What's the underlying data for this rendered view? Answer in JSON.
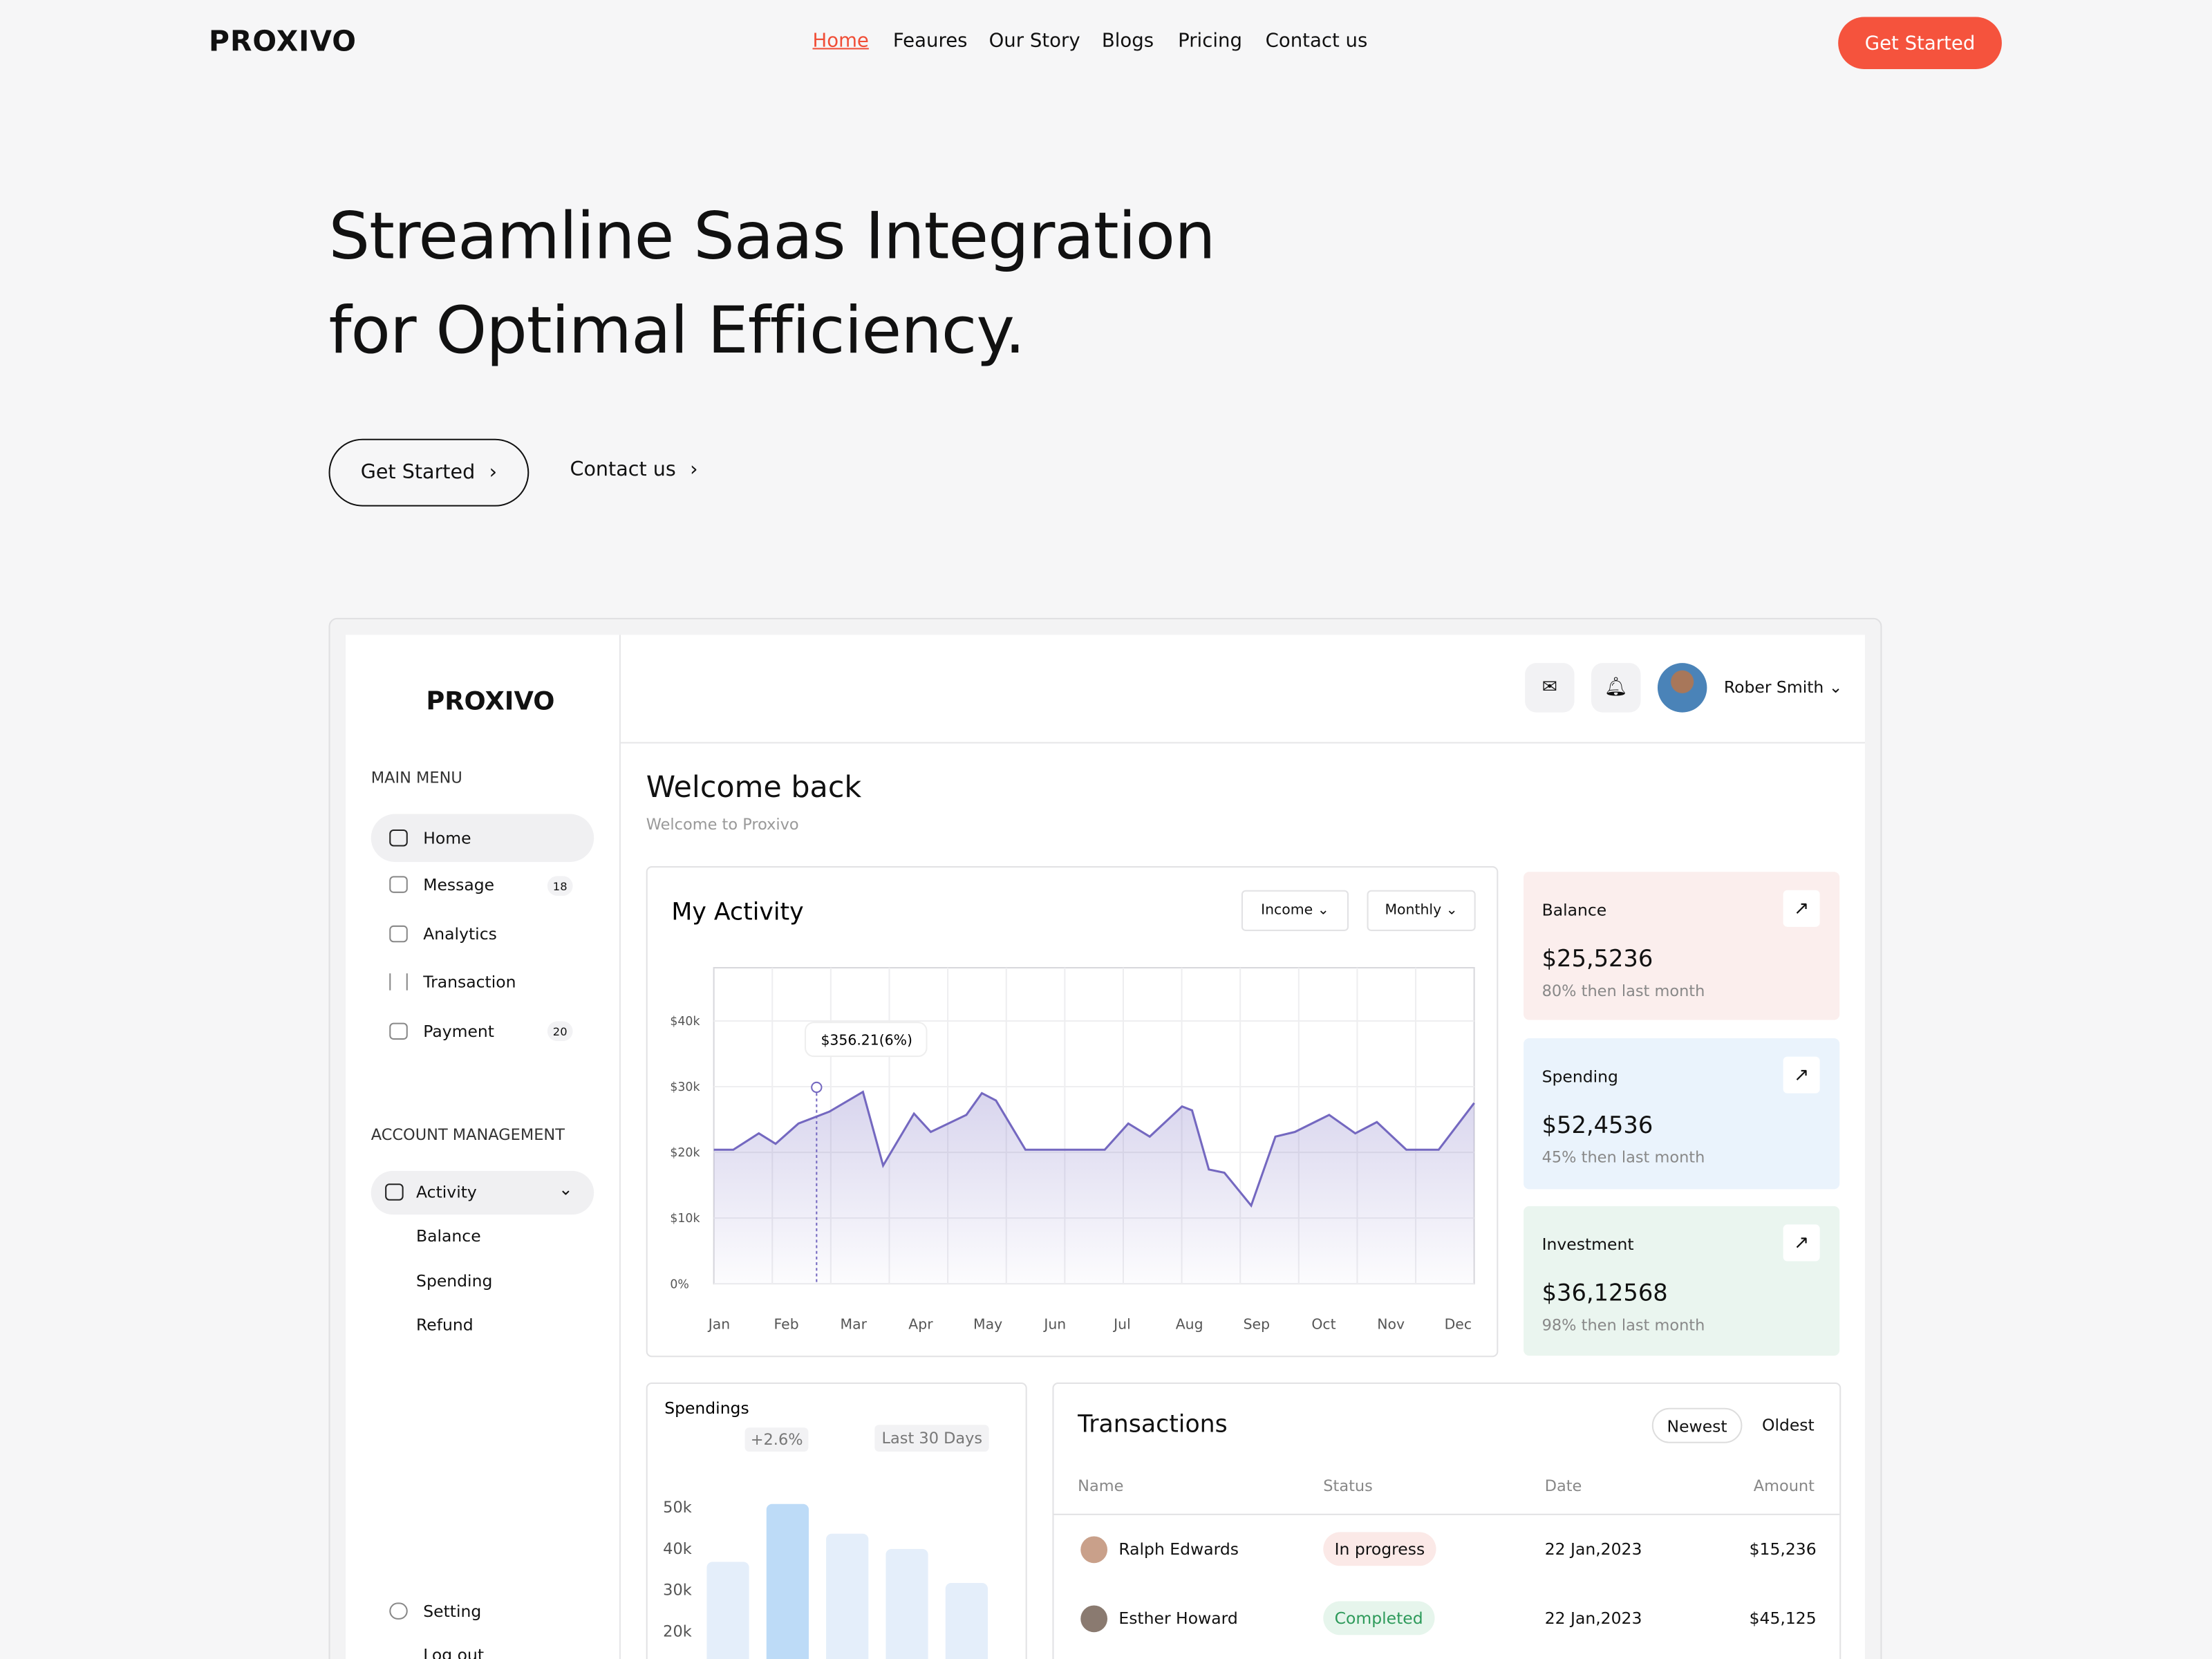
{
  "nav": {
    "logo": "PROXIVO",
    "links": [
      "Home",
      "Feaures",
      "Our Story",
      "Blogs",
      "Pricing",
      "Contact us"
    ],
    "cta": "Get Started"
  },
  "hero": {
    "title_line1": "Streamline Saas Integration",
    "title_line2": "for Optimal Efficiency.",
    "primary": "Get Started",
    "secondary": "Contact us"
  },
  "dashboard": {
    "logo": "PROXIVO",
    "main_menu_title": "MAIN MENU",
    "main_menu": [
      {
        "label": "Home"
      },
      {
        "label": "Message",
        "badge": 18
      },
      {
        "label": "Analytics"
      },
      {
        "label": "Transaction"
      },
      {
        "label": "Payment",
        "badge": 20
      }
    ],
    "account_title": "ACCOUNT MANAGEMENT",
    "account_menu": "Activity",
    "account_sub": [
      "Balance",
      "Spending",
      "Refund"
    ],
    "setting": "Setting",
    "logout": "Log out",
    "user": "Rober Smith",
    "welcome": "Welcome back",
    "welcome_sub": "Welcome to Proxivo",
    "cards": [
      {
        "title": "Balance",
        "value": "$25,5236",
        "note": "80% then last month"
      },
      {
        "title": "Spending",
        "value": "$52,4536",
        "note": "45% then last month"
      },
      {
        "title": "Investment",
        "value": "$36,12568",
        "note": "98% then last month"
      }
    ],
    "transactions": {
      "title": "Transactions",
      "sort": [
        "Newest",
        "Oldest"
      ],
      "headers": [
        "Name",
        "Status",
        "Date",
        "Amount"
      ],
      "rows": [
        [
          "Ralph Edwards",
          "In progress",
          "22 Jan,2023",
          "$15,236"
        ],
        [
          "Esther Howard",
          "Completed",
          "22 Jan,2023",
          "$45,125"
        ]
      ]
    }
  },
  "chart_data": [
    {
      "type": "line",
      "title": "My Activity",
      "filters": [
        "Income",
        "Monthly"
      ],
      "x": [
        -0.08,
        0.21,
        0.59,
        0.84,
        1.18,
        1.64,
        2.14,
        2.44,
        2.9,
        3.15,
        3.68,
        3.91,
        4.12,
        4.56,
        5.74,
        6.09,
        6.41,
        6.89,
        7.04,
        7.29,
        7.52,
        7.92,
        8.28,
        8.57,
        9.08,
        9.47,
        9.79,
        10.23,
        10.71,
        11.24
      ],
      "values": [
        20400,
        20400,
        22900,
        21300,
        24400,
        26200,
        29200,
        18000,
        25900,
        23100,
        25700,
        29000,
        27900,
        20400,
        20400,
        24400,
        22400,
        27000,
        26400,
        17400,
        16900,
        11900,
        22400,
        23100,
        25700,
        22900,
        24600,
        20400,
        20400,
        27500
      ],
      "color": "#7468c0",
      "xlim": [
        -0.08,
        11.24
      ],
      "xticks": [
        {
          "value": 0,
          "label": "Jan"
        },
        {
          "value": 1,
          "label": "Feb"
        },
        {
          "value": 2,
          "label": "Mar"
        },
        {
          "value": 3,
          "label": "Apr"
        },
        {
          "value": 4,
          "label": "May"
        },
        {
          "value": 5,
          "label": "Jun"
        },
        {
          "value": 6,
          "label": "Jul"
        },
        {
          "value": 7,
          "label": "Aug"
        },
        {
          "value": 8,
          "label": "Sep"
        },
        {
          "value": 9,
          "label": "Oct"
        },
        {
          "value": 10,
          "label": "Nov"
        },
        {
          "value": 11,
          "label": "Dec"
        }
      ],
      "ylim": [
        0,
        48100
      ],
      "yticks": [
        {
          "value": 0,
          "label": "0%"
        },
        {
          "value": 10000,
          "label": "$10k"
        },
        {
          "value": 20000,
          "label": "$20k"
        },
        {
          "value": 30000,
          "label": "$30k"
        },
        {
          "value": 40000,
          "label": "$40k"
        }
      ],
      "annotation": "$356.21(6%)",
      "annotation_x": 1.45,
      "annotation_value": 29900,
      "grid": true
    },
    {
      "type": "bar",
      "title": "Spendings",
      "change": "+2.6%",
      "period": "Last 30 Days",
      "values": [
        36700,
        50700,
        43500,
        39800,
        31600
      ],
      "colors": [
        "#e4eefa",
        "#bddbf7",
        "#e4eefa",
        "#e4eefa",
        "#e4eefa"
      ],
      "ylim": [
        13200,
        52100
      ],
      "yticks": [
        {
          "value": 20000,
          "label": "20k"
        },
        {
          "value": 30000,
          "label": "30k"
        },
        {
          "value": 40000,
          "label": "40k"
        },
        {
          "value": 50000,
          "label": "50k"
        }
      ]
    }
  ]
}
